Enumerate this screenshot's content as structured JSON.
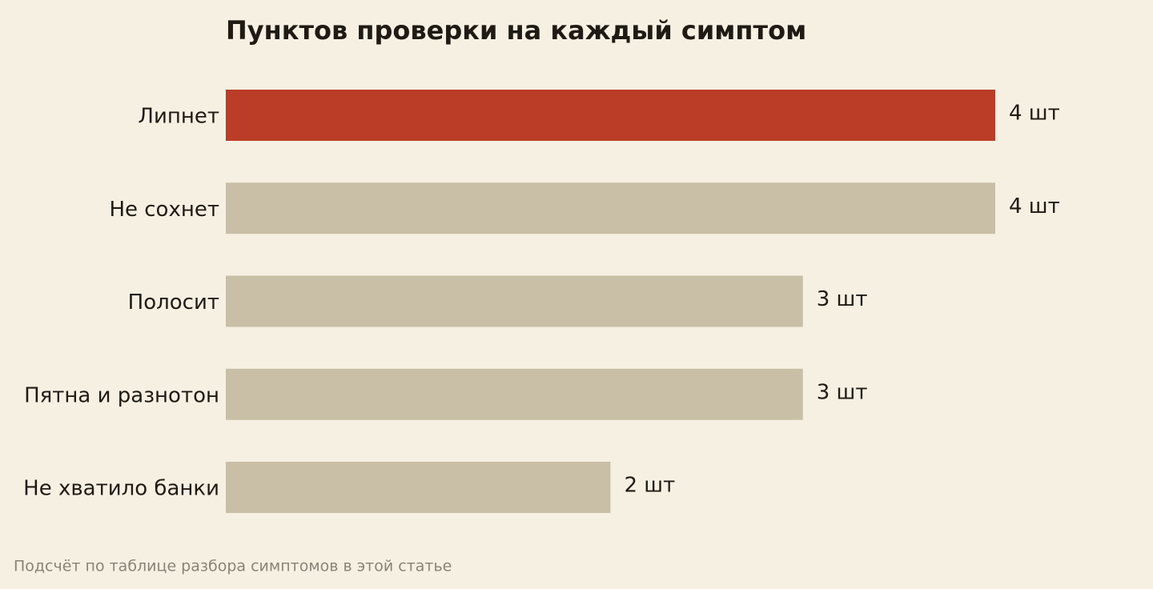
{
  "chart_data": {
    "type": "bar",
    "orientation": "horizontal",
    "title": "Пунктов проверки на каждый симптом",
    "categories": [
      "Липнет",
      "Не сохнет",
      "Полосит",
      "Пятна и разнотон",
      "Не хватило банки"
    ],
    "values": [
      4,
      4,
      3,
      3,
      2
    ],
    "value_labels": [
      "4 шт",
      "4 шт",
      "3 шт",
      "3 шт",
      "2 шт"
    ],
    "colors": [
      "#bb3d28",
      "#c9bfa6",
      "#c9bfa6",
      "#c9bfa6",
      "#c9bfa6"
    ],
    "note": "Подсчёт по таблице разбора симптомов в этой статье"
  }
}
